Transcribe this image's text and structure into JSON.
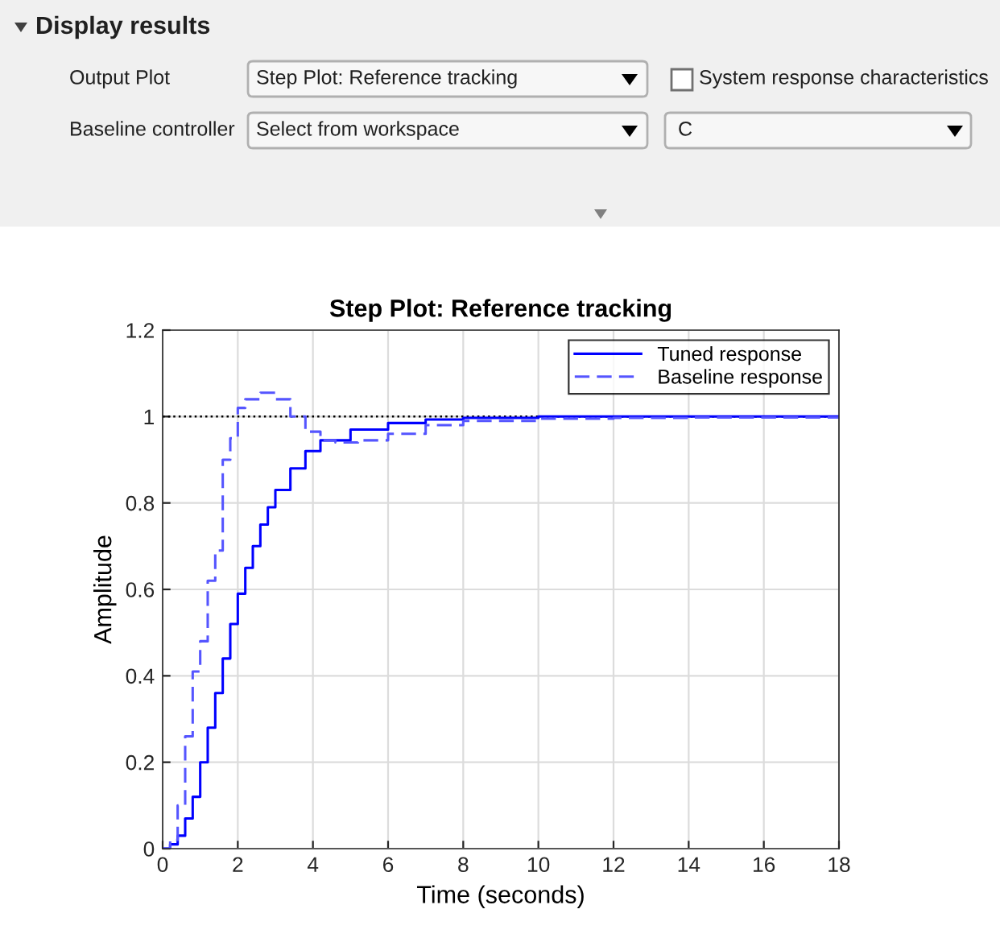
{
  "chart_data": [
    {
      "type": "other",
      "annotations": [
        "Display results",
        "Output Plot",
        "Step Plot: Reference tracking",
        "System response characteristics",
        "Baseline controller",
        "Select from workspace",
        "C"
      ]
    },
    {
      "type": "step",
      "title": "Step Plot: Reference tracking",
      "xlabel": "Time (seconds)",
      "ylabel": "Amplitude",
      "xlim": [
        0,
        18
      ],
      "ylim": [
        0,
        1.2
      ],
      "xticks": [
        0,
        2,
        4,
        6,
        8,
        10,
        12,
        14,
        16,
        18
      ],
      "yticks": [
        0,
        0.2,
        0.4,
        0.6,
        0.8,
        1,
        1.2
      ],
      "grid": true,
      "legend": "top right",
      "series": [
        {
          "name": "Tuned response",
          "color": "#0000ff",
          "line_style": "solid",
          "x": [
            0,
            0.2,
            0.4,
            0.6,
            0.8,
            1.0,
            1.2,
            1.4,
            1.6,
            1.8,
            2.0,
            2.2,
            2.4,
            2.6,
            2.8,
            3.0,
            3.4,
            3.8,
            4.2,
            5,
            6,
            7,
            8,
            10,
            18
          ],
          "values": [
            0,
            0.01,
            0.03,
            0.07,
            0.12,
            0.2,
            0.28,
            0.36,
            0.44,
            0.52,
            0.59,
            0.65,
            0.7,
            0.75,
            0.79,
            0.83,
            0.88,
            0.92,
            0.945,
            0.97,
            0.985,
            0.993,
            0.997,
            1,
            1
          ]
        },
        {
          "name": "Baseline response",
          "color": "#5555ff",
          "line_style": "dashed",
          "x": [
            0,
            0.2,
            0.4,
            0.6,
            0.8,
            1.0,
            1.2,
            1.4,
            1.6,
            1.8,
            2.0,
            2.2,
            2.6,
            3.0,
            3.4,
            3.8,
            4.2,
            4.6,
            5.2,
            6,
            7,
            8,
            10,
            12,
            14,
            18
          ],
          "values": [
            0,
            0.02,
            0.1,
            0.26,
            0.41,
            0.48,
            0.62,
            0.69,
            0.9,
            0.95,
            1.02,
            1.04,
            1.055,
            1.04,
            1.0,
            0.965,
            0.945,
            0.94,
            0.945,
            0.96,
            0.98,
            0.99,
            0.995,
            0.997,
            0.998,
            1
          ]
        }
      ],
      "ref_lines": [
        {
          "axis": "y",
          "value": 1,
          "color": "#000000",
          "line_style": "dotted"
        }
      ]
    }
  ]
}
